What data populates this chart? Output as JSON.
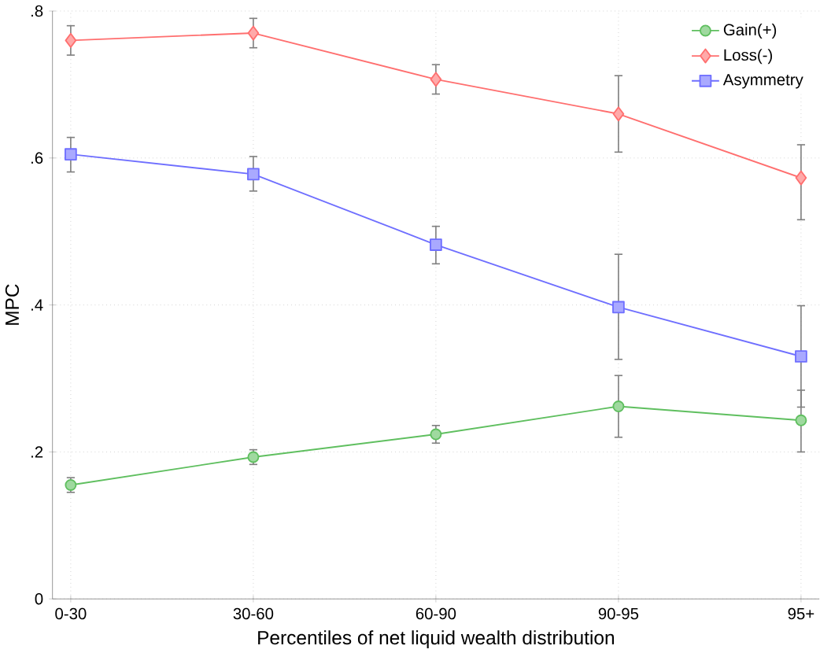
{
  "chart_data": {
    "type": "line",
    "xlabel": "Percentiles of net liquid wealth distribution",
    "ylabel": "MPC",
    "categories": [
      "0-30",
      "30-60",
      "60-90",
      "90-95",
      "95+"
    ],
    "series": [
      {
        "name": "Gain(+)",
        "color": "#5fbf5f",
        "marker": "circle",
        "values": [
          0.155,
          0.193,
          0.224,
          0.262,
          0.243
        ],
        "errors": [
          0.01,
          0.01,
          0.012,
          [
            0.22,
            0.304
          ],
          [
            0.2,
            0.284
          ]
        ]
      },
      {
        "name": "Loss(-)",
        "color": "#ff6f6f",
        "marker": "diamond",
        "values": [
          0.76,
          0.77,
          0.707,
          0.66,
          0.573
        ],
        "errors": [
          0.02,
          0.02,
          0.02,
          [
            0.608,
            0.712
          ],
          [
            0.516,
            0.618
          ]
        ]
      },
      {
        "name": "Asymmetry",
        "color": "#6f6fff",
        "marker": "square",
        "values": [
          0.605,
          0.578,
          0.482,
          0.397,
          0.33
        ],
        "errors": [
          [
            0.581,
            0.628
          ],
          [
            0.555,
            0.602
          ],
          [
            0.456,
            0.507
          ],
          [
            0.326,
            0.469
          ],
          [
            0.261,
            0.399
          ]
        ]
      }
    ],
    "ylim": [
      0,
      0.8
    ],
    "yticks": [
      {
        "value": 0,
        "label": "0"
      },
      {
        "value": 0.2,
        "label": ".2"
      },
      {
        "value": 0.4,
        "label": ".4"
      },
      {
        "value": 0.6,
        "label": ".6"
      },
      {
        "value": 0.8,
        "label": ".8"
      }
    ],
    "grid": true,
    "legend": "top right"
  }
}
